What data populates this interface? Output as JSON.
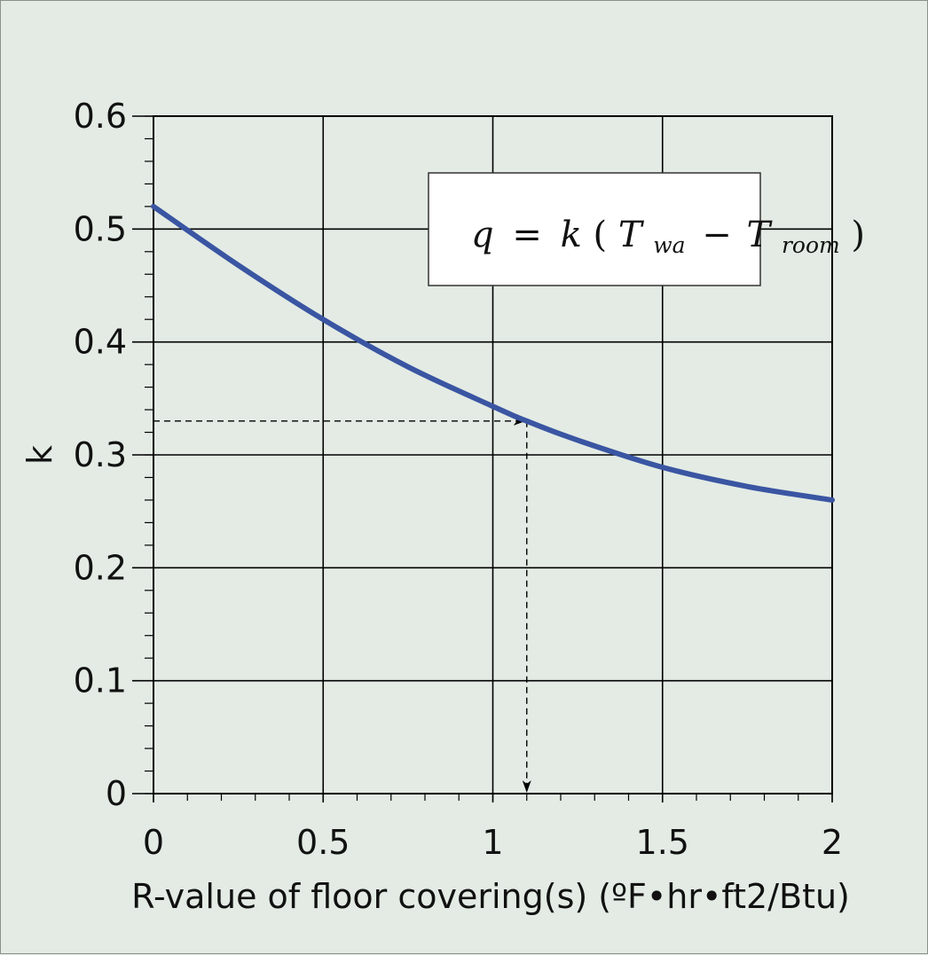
{
  "chart_data": {
    "type": "line",
    "title": "",
    "xlabel": "R-value of floor covering(s) (ºF•hr•ft2/Btu)",
    "ylabel": "k",
    "xlim": [
      0,
      2
    ],
    "ylim": [
      0,
      0.6
    ],
    "x_ticks": [
      0,
      0.5,
      1,
      1.5,
      2
    ],
    "x_tick_labels": [
      "0",
      "0.5",
      "1",
      "1.5",
      "2"
    ],
    "y_ticks": [
      0,
      0.1,
      0.2,
      0.3,
      0.4,
      0.5,
      0.6
    ],
    "y_tick_labels": [
      "0",
      "0.1",
      "0.2",
      "0.3",
      "0.4",
      "0.5",
      "0.6"
    ],
    "grid": true,
    "series": [
      {
        "color": "#3a55a2",
        "x": [
          0,
          0.25,
          0.5,
          0.75,
          1.0,
          1.1,
          1.25,
          1.5,
          1.75,
          2.0
        ],
        "y": [
          0.52,
          0.468,
          0.42,
          0.378,
          0.343,
          0.33,
          0.313,
          0.289,
          0.272,
          0.26
        ]
      }
    ],
    "annotation": {
      "formula": {
        "q": "q",
        "eq": "=",
        "k": "k",
        "open": "(",
        "T1": "T",
        "sub1": "wa",
        "minus": "−",
        "T2": "T",
        "sub2": "room",
        "close": ")"
      },
      "example_reading": {
        "x": 1.1,
        "y": 0.33
      }
    },
    "colors": {
      "background": "#e3ebe4",
      "curve": "#3a55a2",
      "grid": "#000000"
    }
  }
}
